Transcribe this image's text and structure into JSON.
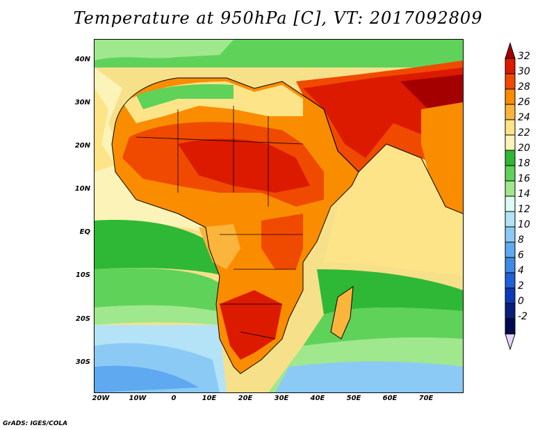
{
  "title": "Temperature at 950hPa [C], VT: 2017092809",
  "footer": "GrADS: IGES/COLA",
  "lat_labels": [
    "40N",
    "30N",
    "20N",
    "10N",
    "EQ",
    "10S",
    "20S",
    "30S"
  ],
  "lon_labels": [
    "20W",
    "10W",
    "0",
    "10E",
    "20E",
    "30E",
    "40E",
    "50E",
    "60E",
    "70E"
  ],
  "colorbar": {
    "labels": [
      "32",
      "30",
      "28",
      "26",
      "24",
      "22",
      "20",
      "18",
      "16",
      "14",
      "12",
      "10",
      "8",
      "6",
      "4",
      "2",
      "0",
      "-2"
    ],
    "colors": [
      "#a50000",
      "#db1a00",
      "#f04a00",
      "#fa8c00",
      "#fbb43c",
      "#fde488",
      "#fcf3b8",
      "#2eb836",
      "#5fd25a",
      "#9fe88d",
      "#dcfbf4",
      "#b4e3f8",
      "#8ccaf6",
      "#5ea9f0",
      "#3e8ae6",
      "#1f60d6",
      "#0a3ab8",
      "#081f7a",
      "#e8d6ff"
    ]
  }
}
